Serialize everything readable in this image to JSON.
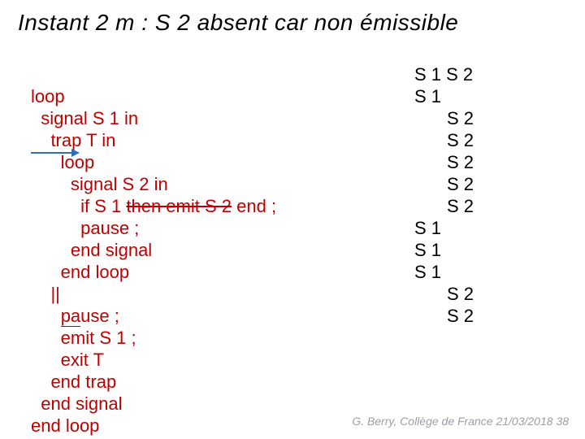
{
  "title": "Instant 2 m : S 2  absent car non émissible",
  "code": {
    "l1": "loop",
    "l2": "  signal S 1 in",
    "l3": "    trap T in",
    "l4": "      loop",
    "l5a": "        signal S 2 in",
    "l6a": "          if S 1 ",
    "l6b": "then emit S 2",
    "l6c": " end ;",
    "l7": "          pause ;",
    "l8": "        end signal",
    "l9": "      end loop",
    "l10": "    ||",
    "l11a": "      ",
    "l11b": "pa",
    "l11c": "use ;",
    "l12": "      emit S 1 ;",
    "l13": "      exit T",
    "l14": "    end trap",
    "l15": "  end signal",
    "l16": "end loop"
  },
  "sig": {
    "r1": "S 1 S 2",
    "r2": "S 1",
    "r3": "S 2",
    "r4": "S 2",
    "r5": "S 2",
    "r6": "S 2",
    "r7": "S 2",
    "r8": "S 1",
    "r9": "S 1",
    "r10": "S 1",
    "r11": "S 2",
    "r12": "S 2"
  },
  "footer": "G. Berry, Collège de France  21/03/2018  38",
  "colors": {
    "code_color": "#c00000",
    "arrow_color": "#2f6eba",
    "footer_color": "#9aa0a6",
    "background": "#ffffff"
  },
  "fontsizes": {
    "title": 28,
    "body": 22,
    "footer": 14
  }
}
